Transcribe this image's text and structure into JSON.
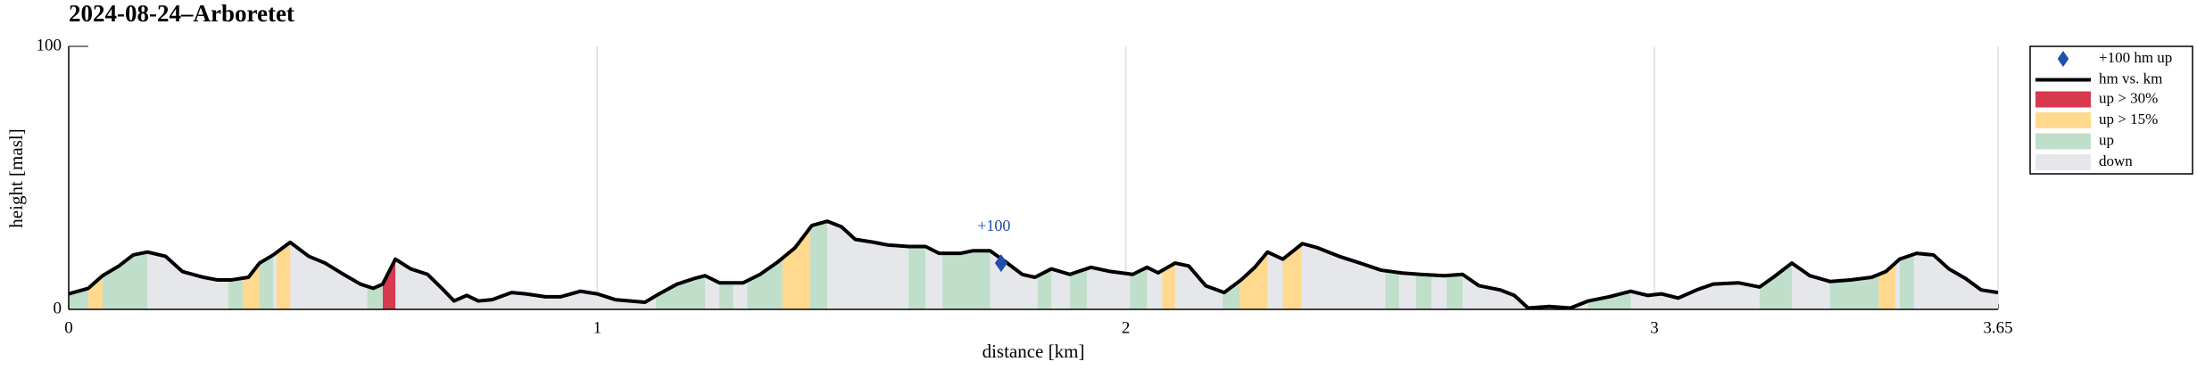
{
  "chart_data": {
    "type": "area",
    "title": "2024-08-24–Arboretet",
    "x_label": "distance [km]",
    "y_label": "height [masl]",
    "xlim": [
      0,
      3.65
    ],
    "ylim": [
      0,
      100
    ],
    "xticks": [
      0,
      1,
      2,
      3,
      3.65
    ],
    "yticks": [
      0,
      100
    ],
    "grid": "x",
    "legend": "outside-right",
    "series": [
      {
        "name": "hm vs. km",
        "color": "#000000",
        "x": [
          0,
          0.037,
          0.064,
          0.095,
          0.122,
          0.149,
          0.183,
          0.215,
          0.255,
          0.281,
          0.308,
          0.34,
          0.361,
          0.387,
          0.419,
          0.454,
          0.485,
          0.52,
          0.552,
          0.576,
          0.594,
          0.618,
          0.647,
          0.679,
          0.706,
          0.729,
          0.753,
          0.775,
          0.801,
          0.838,
          0.865,
          0.902,
          0.931,
          0.968,
          1.0,
          1.034,
          1.09,
          1.117,
          1.151,
          1.183,
          1.204,
          1.231,
          1.276,
          1.308,
          1.342,
          1.374,
          1.406,
          1.435,
          1.462,
          1.488,
          1.523,
          1.549,
          1.589,
          1.621,
          1.647,
          1.687,
          1.711,
          1.743,
          1.769,
          1.804,
          1.828,
          1.859,
          1.894,
          1.934,
          1.971,
          2.013,
          2.04,
          2.061,
          2.093,
          2.119,
          2.151,
          2.186,
          2.218,
          2.244,
          2.268,
          2.297,
          2.334,
          2.363,
          2.403,
          2.443,
          2.483,
          2.523,
          2.557,
          2.602,
          2.637,
          2.668,
          2.708,
          2.735,
          2.761,
          2.801,
          2.841,
          2.875,
          2.915,
          2.955,
          2.987,
          3.013,
          3.045,
          3.08,
          3.111,
          3.159,
          3.199,
          3.225,
          3.26,
          3.294,
          3.332,
          3.371,
          3.411,
          3.438,
          3.464,
          3.496,
          3.528,
          3.557,
          3.589,
          3.618,
          3.65
        ],
        "values": [
          5.9,
          8,
          12.8,
          16.5,
          20.7,
          21.8,
          20.2,
          14.4,
          12.2,
          11.2,
          11.2,
          12.2,
          17.6,
          20.7,
          25.5,
          20.2,
          17.6,
          13.3,
          9.6,
          8,
          9.6,
          19.1,
          15.4,
          13.3,
          8,
          3.2,
          5.3,
          3.2,
          3.7,
          6.4,
          5.9,
          4.8,
          4.8,
          6.9,
          5.9,
          3.7,
          2.7,
          5.9,
          9.6,
          11.7,
          12.8,
          10.1,
          10.1,
          13.3,
          18.1,
          23.4,
          31.9,
          33.5,
          31.4,
          26.6,
          25.5,
          24.5,
          23.9,
          23.9,
          21.3,
          21.3,
          22.3,
          22.3,
          18.6,
          13.3,
          12.2,
          15.4,
          13.3,
          16,
          14.4,
          13.3,
          16,
          13.9,
          17.6,
          16.5,
          9,
          6.4,
          11.2,
          16,
          21.8,
          19.1,
          25,
          23.4,
          20.2,
          17.6,
          14.9,
          13.8,
          13.3,
          12.8,
          13.3,
          9,
          7.4,
          5.3,
          0.5,
          1.1,
          0.5,
          3.2,
          4.8,
          6.9,
          5.3,
          5.9,
          4.3,
          7.4,
          9.6,
          10.1,
          8.5,
          12.2,
          17.6,
          12.8,
          10.6,
          11.2,
          12.2,
          14.4,
          19.1,
          21.3,
          20.7,
          15.4,
          11.7,
          7.4,
          6.4
        ]
      }
    ],
    "bands": [
      {
        "name": "up > 30%",
        "color": "#d9394e",
        "intervals": [
          [
            0.594,
            0.618
          ]
        ]
      },
      {
        "name": "up > 15%",
        "color": "#fed98e",
        "intervals": [
          [
            0.037,
            0.064
          ],
          [
            0.329,
            0.361
          ],
          [
            0.393,
            0.419
          ],
          [
            1.35,
            1.403
          ],
          [
            2.069,
            2.093
          ],
          [
            2.215,
            2.268
          ],
          [
            2.297,
            2.332
          ],
          [
            3.424,
            3.456
          ]
        ]
      },
      {
        "name": "up",
        "color": "#bfdfca",
        "intervals": [
          [
            0,
            0.037
          ],
          [
            0.064,
            0.149
          ],
          [
            0.302,
            0.329
          ],
          [
            0.361,
            0.387
          ],
          [
            0.565,
            0.594
          ],
          [
            1.111,
            1.204
          ],
          [
            1.231,
            1.257
          ],
          [
            1.284,
            1.35
          ],
          [
            1.403,
            1.435
          ],
          [
            1.589,
            1.621
          ],
          [
            1.653,
            1.743
          ],
          [
            1.833,
            1.859
          ],
          [
            1.894,
            1.926
          ],
          [
            2.008,
            2.04
          ],
          [
            2.183,
            2.215
          ],
          [
            2.491,
            2.517
          ],
          [
            2.549,
            2.578
          ],
          [
            2.607,
            2.637
          ],
          [
            2.875,
            2.955
          ],
          [
            3.199,
            3.26
          ],
          [
            3.332,
            3.424
          ],
          [
            3.464,
            3.491
          ]
        ]
      }
    ],
    "fill": {
      "name": "down",
      "color": "#e6e7eb"
    },
    "markers": [
      {
        "name": "+100 hm up",
        "color": "#1f4fa8",
        "x": 1.764,
        "y": 17.6,
        "label": "+100"
      }
    ]
  }
}
